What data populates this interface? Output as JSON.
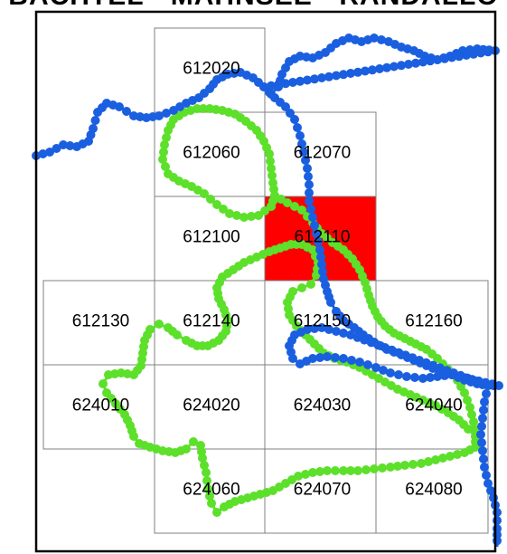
{
  "title": "BACHTEL - MAHNSEE - RANDALLO",
  "colors": {
    "highlight": "#ff0000",
    "track_blue": "#1a5fe0",
    "track_green": "#5ce02a",
    "tile_border": "#808080",
    "frame": "#000000"
  },
  "tiles": [
    {
      "id": "612020",
      "highlighted": false
    },
    {
      "id": "612060",
      "highlighted": false
    },
    {
      "id": "612070",
      "highlighted": false
    },
    {
      "id": "612100",
      "highlighted": false
    },
    {
      "id": "612110",
      "highlighted": true
    },
    {
      "id": "612130",
      "highlighted": false
    },
    {
      "id": "612140",
      "highlighted": false
    },
    {
      "id": "612150",
      "highlighted": false
    },
    {
      "id": "612160",
      "highlighted": false
    },
    {
      "id": "624010",
      "highlighted": false
    },
    {
      "id": "624020",
      "highlighted": false
    },
    {
      "id": "624030",
      "highlighted": false
    },
    {
      "id": "624040",
      "highlighted": false
    },
    {
      "id": "624060",
      "highlighted": false
    },
    {
      "id": "624070",
      "highlighted": false
    },
    {
      "id": "624080",
      "highlighted": false
    }
  ],
  "tracks": [
    {
      "name": "blue-track",
      "color": "#1a5fe0"
    },
    {
      "name": "green-track",
      "color": "#5ce02a"
    }
  ]
}
